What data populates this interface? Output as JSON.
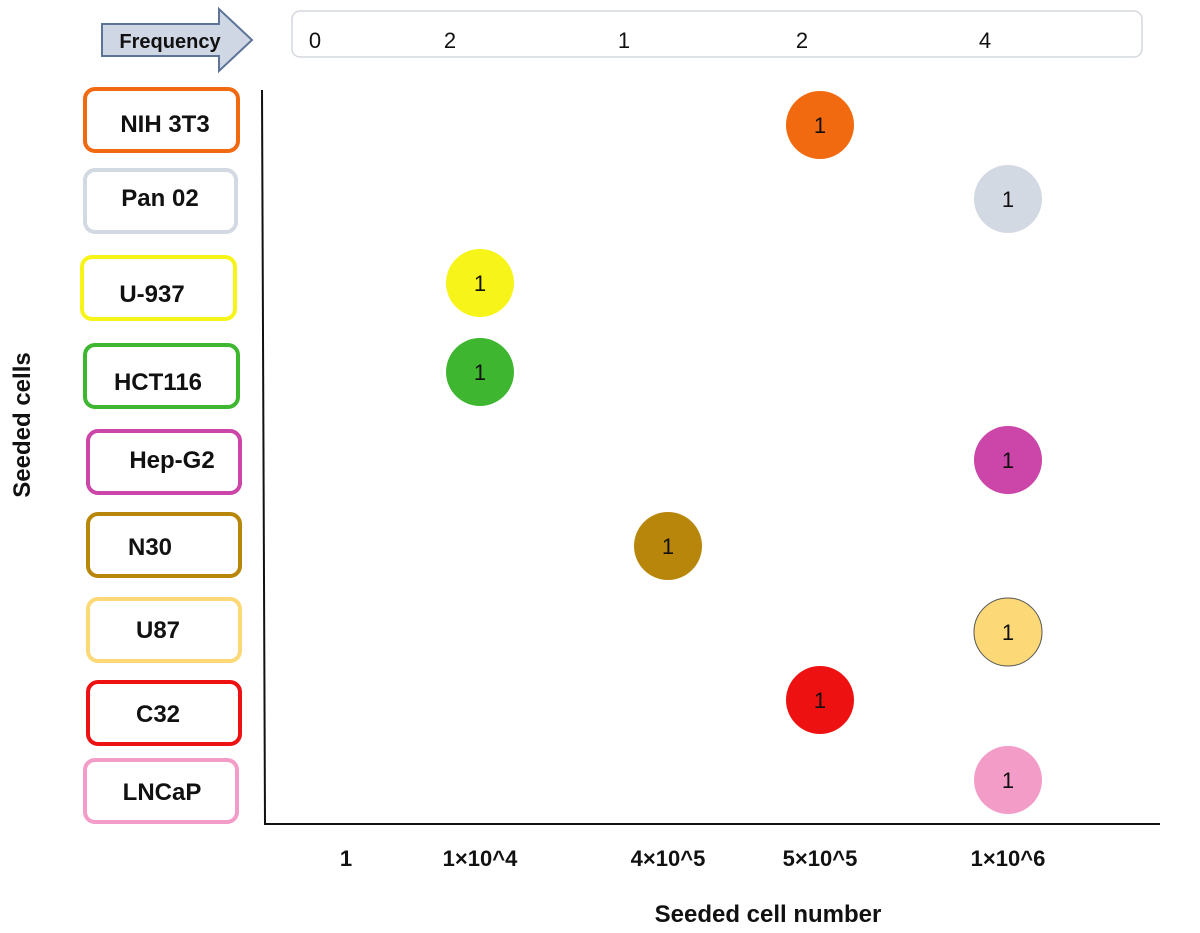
{
  "chart_data": {
    "type": "scatter",
    "xlabel": "Seeded cell number",
    "ylabel": "Seeded cells",
    "x_categories": [
      "1",
      "1×10^4",
      "4×10^5",
      "5×10^5",
      "1×10^6"
    ],
    "y_categories": [
      "NIH 3T3",
      "Pan 02",
      "U-937",
      "HCT116",
      "Hep-G2",
      "N30",
      "U87",
      "C32",
      "LNCaP"
    ],
    "frequency": {
      "label": "Frequency",
      "values": [
        0,
        2,
        1,
        2,
        4
      ]
    },
    "points": [
      {
        "cell": "NIH 3T3",
        "x": "5×10^5",
        "value": 1,
        "label": "1"
      },
      {
        "cell": "Pan 02",
        "x": "1×10^6",
        "value": 1,
        "label": "1"
      },
      {
        "cell": "U-937",
        "x": "1×10^4",
        "value": 1,
        "label": "1"
      },
      {
        "cell": "HCT116",
        "x": "1×10^4",
        "value": 1,
        "label": "1"
      },
      {
        "cell": "Hep-G2",
        "x": "1×10^6",
        "value": 1,
        "label": "1"
      },
      {
        "cell": "N30",
        "x": "4×10^5",
        "value": 1,
        "label": "1"
      },
      {
        "cell": "U87",
        "x": "1×10^6",
        "value": 1,
        "label": "1"
      },
      {
        "cell": "C32",
        "x": "5×10^5",
        "value": 1,
        "label": "1"
      },
      {
        "cell": "LNCaP",
        "x": "1×10^6",
        "value": 1,
        "label": "1"
      }
    ],
    "colors": {
      "NIH 3T3": "#f26a10",
      "Pan 02": "#d3d9e2",
      "U-937": "#f7f41a",
      "HCT116": "#3eb62f",
      "Hep-G2": "#cc45a8",
      "N30": "#b8860b",
      "U87": "#fdd876",
      "C32": "#ee1111",
      "LNCaP": "#f49cc8"
    }
  }
}
